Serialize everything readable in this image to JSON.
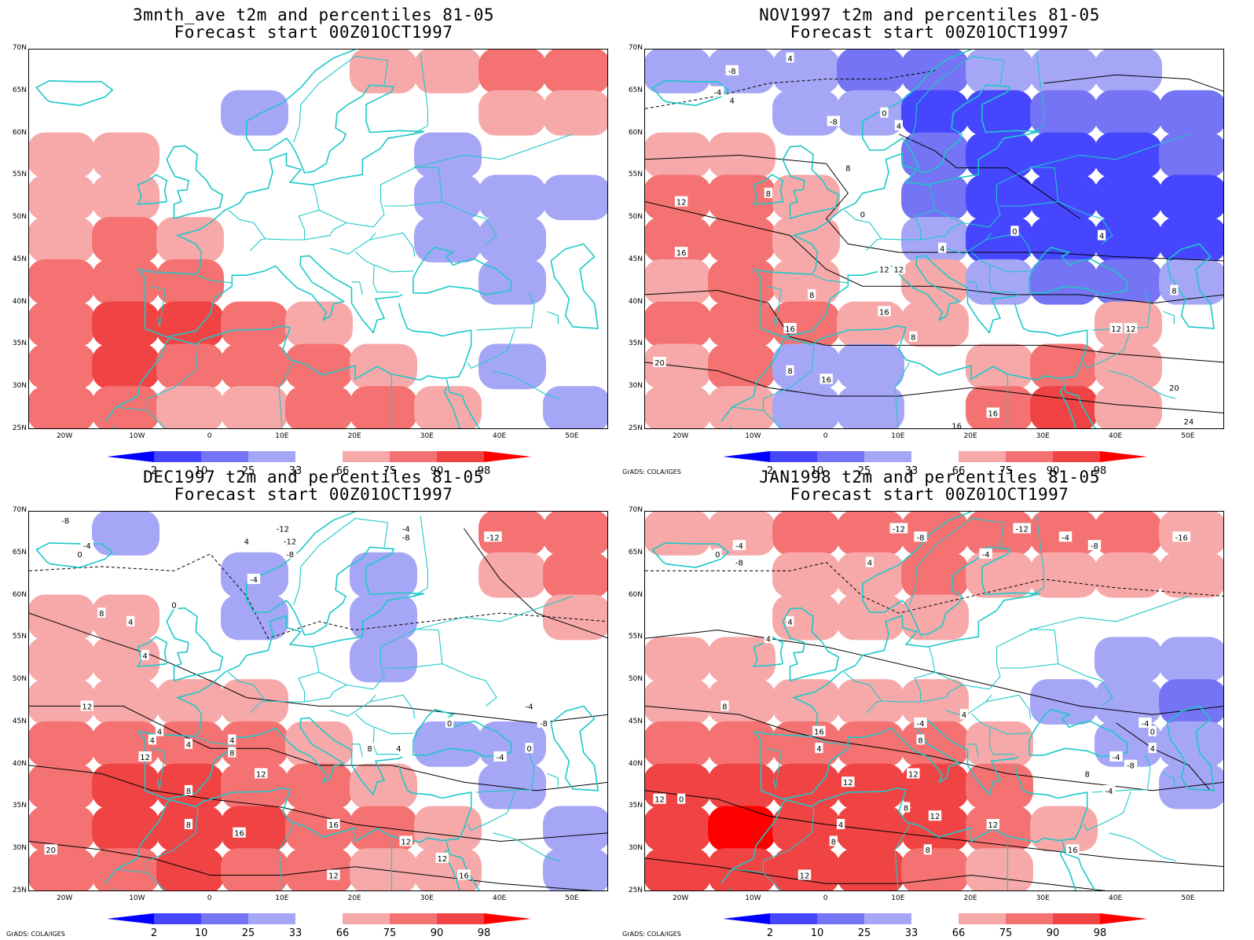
{
  "legend": {
    "labels": [
      "2",
      "10",
      "25",
      "33",
      "66",
      "75",
      "90",
      "98"
    ],
    "colors": [
      "#0000ff",
      "#4646ff",
      "#7474f4",
      "#a6a6f6",
      "#ffffff",
      "#f7a9a9",
      "#f47272",
      "#f04444",
      "#ff0000"
    ]
  },
  "credit": "GrADS: COLA/IGES",
  "lat_labels": [
    "70N",
    "65N",
    "60N",
    "55N",
    "50N",
    "45N",
    "40N",
    "35N",
    "30N",
    "25N"
  ],
  "lon_labels": [
    "20W",
    "10W",
    "0",
    "10E",
    "20E",
    "30E",
    "40E",
    "50E"
  ],
  "panels": [
    {
      "title": "3mnth_ave t2m and percentiles 81-05",
      "subtitle": "Forecast start 00Z01OCT1997",
      "show_credit": false,
      "contour_labels": []
    },
    {
      "title": "NOV1997 t2m and percentiles 81-05",
      "subtitle": "Forecast start 00Z01OCT1997",
      "show_credit": true,
      "contour_labels": [
        "-4",
        "4",
        "-8",
        "-8",
        "4",
        "0",
        "4",
        "8",
        "8",
        "12",
        "16",
        "0",
        "0",
        "4",
        "4",
        "8",
        "12",
        "12",
        "16",
        "16",
        "20",
        "16",
        "16",
        "16",
        "12",
        "8",
        "20",
        "24",
        "8",
        "12",
        "8"
      ]
    },
    {
      "title": "DEC1997 t2m and percentiles 81-05",
      "subtitle": "Forecast start 00Z01OCT1997",
      "show_credit": true,
      "contour_labels": [
        "-8",
        "-4",
        "0",
        "4",
        "-12",
        "-8",
        "-4",
        "0",
        "-12",
        "-4",
        "-8",
        "-12",
        "4",
        "4",
        "8",
        "12",
        "4",
        "4",
        "4",
        "4",
        "8",
        "12",
        "12",
        "8",
        "8",
        "16",
        "16",
        "12",
        "12",
        "20",
        "16",
        "12",
        "-4",
        "-8",
        "0",
        "4",
        "8",
        "0",
        "-4"
      ]
    },
    {
      "title": "JAN1998 t2m and percentiles 81-05",
      "subtitle": "Forecast start 00Z01OCT1997",
      "show_credit": true,
      "contour_labels": [
        "-4",
        "-8",
        "0",
        "4",
        "-12",
        "-8",
        "-4",
        "-12",
        "-4",
        "-8",
        "-16",
        "4",
        "4",
        "8",
        "12",
        "16",
        "4",
        "4",
        "8",
        "-4",
        "4",
        "12",
        "12",
        "8",
        "8",
        "12",
        "8",
        "12",
        "-4",
        "0",
        "-4",
        "4",
        "8",
        "-8",
        "-4",
        "0",
        "16",
        "12"
      ]
    }
  ]
}
